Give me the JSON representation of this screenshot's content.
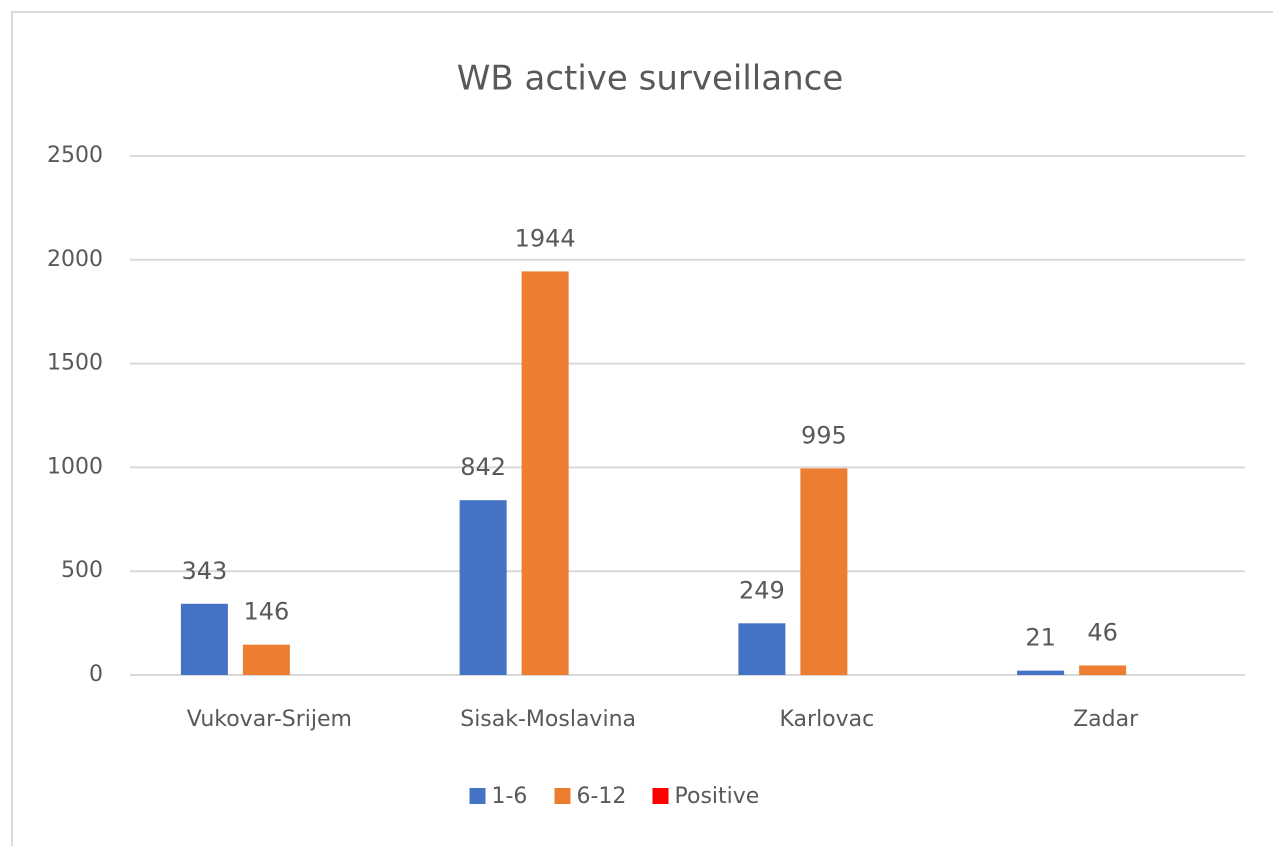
{
  "chart_data": {
    "type": "bar",
    "title": "WB active surveillance",
    "categories": [
      "Vukovar-Srijem",
      "Sisak-Moslavina",
      "Karlovac",
      "Zadar"
    ],
    "series": [
      {
        "name": "1-6",
        "color": "#4472c4",
        "values": [
          343,
          842,
          249,
          21
        ],
        "show_labels": true
      },
      {
        "name": "6-12",
        "color": "#ed7d31",
        "values": [
          146,
          1944,
          995,
          46
        ],
        "show_labels": true
      },
      {
        "name": "Positive",
        "color": "#ff0000",
        "values": [
          0,
          0,
          0,
          0
        ],
        "show_labels": false
      }
    ],
    "ylim": [
      0,
      2500
    ],
    "yticks": [
      0,
      500,
      1000,
      1500,
      2000,
      2500
    ],
    "grid": true,
    "legend": "bottom"
  }
}
